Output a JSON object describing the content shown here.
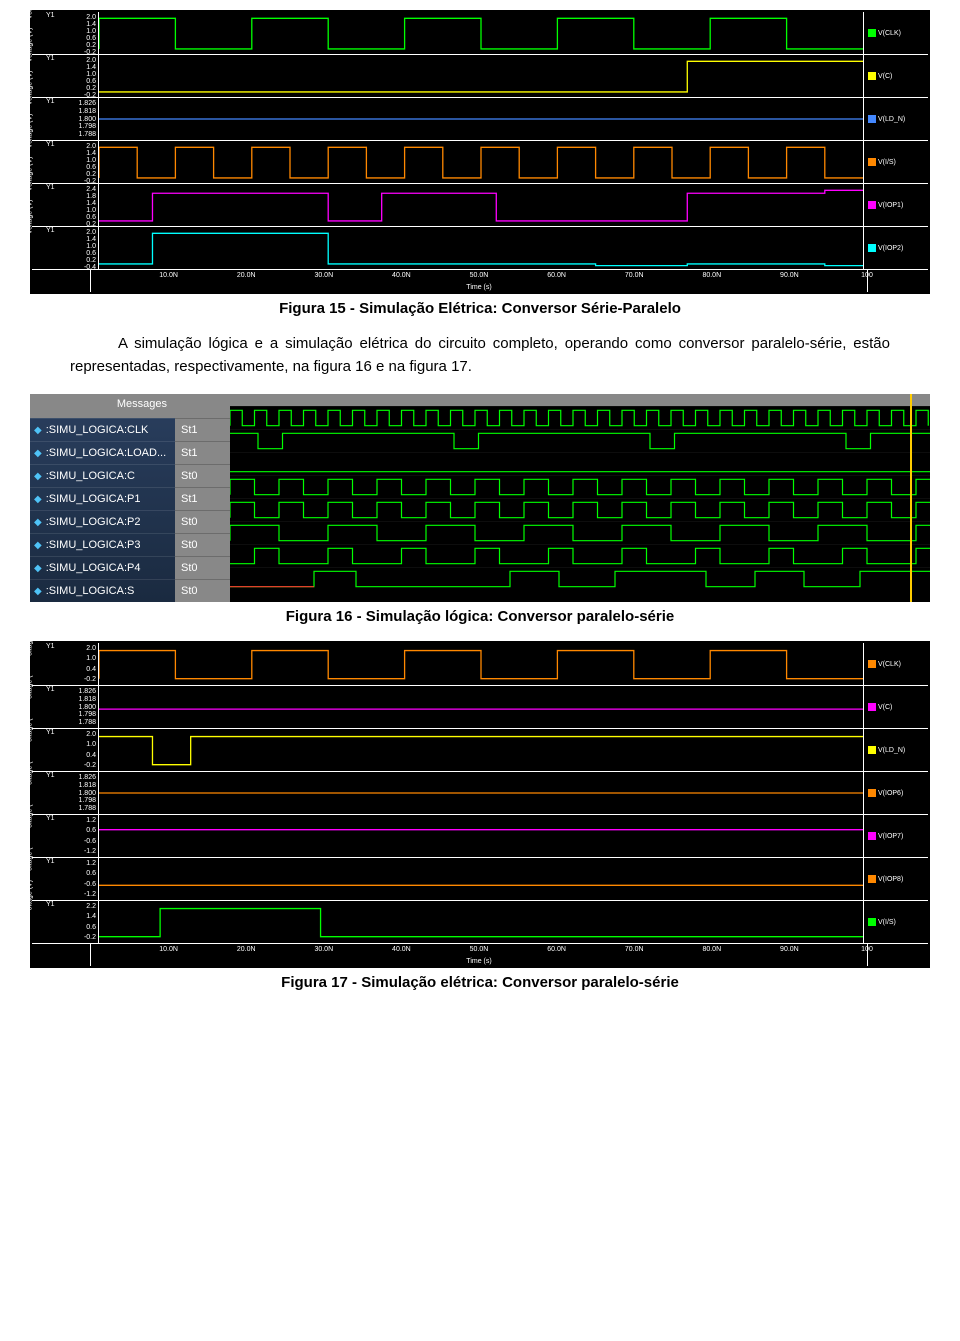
{
  "figure15": {
    "caption": "Figura 15 - Simulação Elétrica: Conversor Série-Paralelo",
    "background": "#000000",
    "trace_stroke_width": 1.2,
    "x_axis": {
      "label": "Time (s)",
      "ticks": [
        "10.0N",
        "20.0N",
        "30.0N",
        "40.0N",
        "50.0N",
        "60.0N",
        "70.0N",
        "80.0N",
        "90.0N",
        "100"
      ],
      "tick_positions_pct": [
        10,
        20,
        30,
        40,
        50,
        60,
        70,
        80,
        90,
        100
      ]
    },
    "panes": [
      {
        "y_title": "Y1",
        "y_label": "Voltage (V)",
        "y_ticks": [
          "2.0",
          "1.4",
          "1.0",
          "0.6",
          "0.2",
          "-0.2"
        ],
        "signal": {
          "name": "V(CLK)",
          "color": "#00ff00"
        },
        "wave_type": "square",
        "period_pct": 20,
        "duty": 0.5,
        "high": 0.15,
        "low": 0.88,
        "phase_pct": 0
      },
      {
        "y_title": "Y1",
        "y_label": "Voltage (V)",
        "y_ticks": [
          "2.0",
          "1.4",
          "1.0",
          "0.6",
          "0.2",
          "-0.2"
        ],
        "signal": {
          "name": "V(C)",
          "color": "#ffff00"
        },
        "wave_type": "step",
        "transitions": [
          [
            0,
            0.88
          ],
          [
            77,
            0.88
          ],
          [
            77,
            0.15
          ],
          [
            100,
            0.15
          ]
        ]
      },
      {
        "y_title": "Y1",
        "y_label": "Voltage (V)",
        "y_ticks": [
          "1.826",
          "1.818",
          "1.800",
          "1.798",
          "1.788"
        ],
        "signal": {
          "name": "V(LD_N)",
          "color": "#4488ff"
        },
        "wave_type": "flat",
        "level": 0.5
      },
      {
        "y_title": "Y1",
        "y_label": "Voltage (V)",
        "y_ticks": [
          "2.0",
          "1.4",
          "1.0",
          "0.6",
          "0.2",
          "-0.2"
        ],
        "signal": {
          "name": "V(I/S)",
          "color": "#ff8800"
        },
        "wave_type": "square",
        "period_pct": 10,
        "duty": 0.5,
        "high": 0.15,
        "low": 0.88,
        "phase_pct": 0
      },
      {
        "y_title": "Y1",
        "y_label": "Voltage (V)",
        "y_ticks": [
          "2.4",
          "1.8",
          "1.4",
          "1.0",
          "0.6",
          "0.2",
          "-0.2"
        ],
        "signal": {
          "name": "V(IOP1)",
          "color": "#ff00ff"
        },
        "wave_type": "step",
        "transitions": [
          [
            0,
            0.88
          ],
          [
            7,
            0.88
          ],
          [
            7,
            0.22
          ],
          [
            30,
            0.22
          ],
          [
            30,
            0.88
          ],
          [
            37,
            0.88
          ],
          [
            37,
            0.22
          ],
          [
            52,
            0.22
          ],
          [
            52,
            0.88
          ],
          [
            77,
            0.88
          ],
          [
            77,
            0.22
          ],
          [
            95,
            0.22
          ],
          [
            95,
            0.15
          ],
          [
            100,
            0.15
          ]
        ]
      },
      {
        "y_title": "Y1",
        "y_label": "Voltage (V)",
        "y_ticks": [
          "2.0",
          "1.4",
          "1.0",
          "0.6",
          "0.2",
          "-0.4"
        ],
        "signal": {
          "name": "V(IOP2)",
          "color": "#00ffff"
        },
        "wave_type": "step",
        "transitions": [
          [
            0,
            0.88
          ],
          [
            7,
            0.88
          ],
          [
            7,
            0.15
          ],
          [
            30,
            0.15
          ],
          [
            30,
            0.88
          ],
          [
            65,
            0.88
          ],
          [
            65,
            0.92
          ],
          [
            77,
            0.92
          ],
          [
            77,
            0.88
          ],
          [
            95,
            0.88
          ],
          [
            95,
            0.92
          ],
          [
            100,
            0.92
          ]
        ]
      }
    ]
  },
  "paragraph1": "A simulação lógica e a simulação elétrica do circuito completo, operando como conversor paralelo-série, estão representadas, respectivamente, na figura 16 e na figura 17.",
  "figure16": {
    "caption": "Figura 16 - Simulação lógica: Conversor paralelo-série",
    "header": "Messages",
    "name_bg": "#2a3f5f",
    "value_bg": "#888888",
    "wave_color": "#00ff00",
    "s_wave_color": "#ff3030",
    "cursor_color": "#ffcc00",
    "signals": [
      {
        "name": ":SIMU_LOGICA:CLK",
        "value": "St1",
        "pattern": "clk"
      },
      {
        "name": ":SIMU_LOGICA:LOAD...",
        "value": "St1",
        "pattern": "load"
      },
      {
        "name": ":SIMU_LOGICA:C",
        "value": "St0",
        "pattern": "flat_low"
      },
      {
        "name": ":SIMU_LOGICA:P1",
        "value": "St1",
        "pattern": "p1"
      },
      {
        "name": ":SIMU_LOGICA:P2",
        "value": "St0",
        "pattern": "p2"
      },
      {
        "name": ":SIMU_LOGICA:P3",
        "value": "St0",
        "pattern": "p3"
      },
      {
        "name": ":SIMU_LOGICA:P4",
        "value": "St0",
        "pattern": "p4"
      },
      {
        "name": ":SIMU_LOGICA:S",
        "value": "St0",
        "pattern": "s"
      }
    ]
  },
  "figure17": {
    "caption": "Figura 17 - Simulação elétrica: Conversor paralelo-série",
    "background": "#000000",
    "x_axis": {
      "label": "Time (s)",
      "ticks": [
        "10.0N",
        "20.0N",
        "30.0N",
        "40.0N",
        "50.0N",
        "60.0N",
        "70.0N",
        "80.0N",
        "90.0N",
        "100"
      ],
      "tick_positions_pct": [
        10,
        20,
        30,
        40,
        50,
        60,
        70,
        80,
        90,
        100
      ]
    },
    "panes": [
      {
        "y_title": "Y1",
        "y_label": "oltage (",
        "y_ticks": [
          "2.0",
          "1.0",
          "0.4",
          "-0.2"
        ],
        "signal": {
          "name": "V(CLK)",
          "color": "#ff8800"
        },
        "wave_type": "square",
        "period_pct": 20,
        "duty": 0.5,
        "high": 0.18,
        "low": 0.85,
        "phase_pct": 0
      },
      {
        "y_title": "Y1",
        "y_label": "oltage (",
        "y_ticks": [
          "1.826",
          "1.818",
          "1.800",
          "1.798",
          "1.788"
        ],
        "signal": {
          "name": "V(C)",
          "color": "#ff00ff"
        },
        "wave_type": "flat",
        "level": 0.55
      },
      {
        "y_title": "Y1",
        "y_label": "oltage (",
        "y_ticks": [
          "2.0",
          "1.0",
          "0.4",
          "-0.2"
        ],
        "signal": {
          "name": "V(LD_N)",
          "color": "#ffff00"
        },
        "wave_type": "step",
        "transitions": [
          [
            0,
            0.18
          ],
          [
            7,
            0.18
          ],
          [
            7,
            0.85
          ],
          [
            12,
            0.85
          ],
          [
            12,
            0.18
          ],
          [
            100,
            0.18
          ]
        ]
      },
      {
        "y_title": "Y1",
        "y_label": "oltage (",
        "y_ticks": [
          "1.826",
          "1.818",
          "1.800",
          "1.798",
          "1.788"
        ],
        "signal": {
          "name": "V(IOP6)",
          "color": "#ff8800"
        },
        "wave_type": "flat",
        "level": 0.5
      },
      {
        "y_title": "Y1",
        "y_label": "oltage (",
        "y_ticks": [
          "1.2",
          "0.6",
          "-0.6",
          "-1.2"
        ],
        "signal": {
          "name": "V(IOP7)",
          "color": "#ff00ff"
        },
        "wave_type": "flat",
        "level": 0.35
      },
      {
        "y_title": "Y1",
        "y_label": "oltage (",
        "y_ticks": [
          "1.2",
          "0.6",
          "-0.6",
          "-1.2"
        ],
        "signal": {
          "name": "V(IOP8)",
          "color": "#ff8800"
        },
        "wave_type": "flat",
        "level": 0.65
      },
      {
        "y_title": "Y1",
        "y_label": "oltage (V)",
        "y_ticks": [
          "2.2",
          "1.4",
          "0.6",
          "-0.2"
        ],
        "signal": {
          "name": "V(I/S)",
          "color": "#00ff00"
        },
        "wave_type": "step",
        "transitions": [
          [
            0,
            0.85
          ],
          [
            8,
            0.85
          ],
          [
            8,
            0.18
          ],
          [
            29,
            0.18
          ],
          [
            29,
            0.85
          ],
          [
            100,
            0.85
          ]
        ]
      }
    ]
  }
}
